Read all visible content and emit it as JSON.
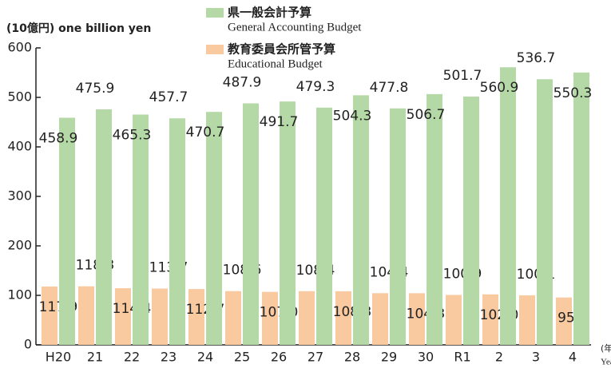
{
  "chart_data": {
    "type": "bar",
    "y_label": "(10億円) one billion yen",
    "x_label": "(年度)",
    "x_label_en": "Year",
    "categories": [
      "H20",
      "21",
      "22",
      "23",
      "24",
      "25",
      "26",
      "27",
      "28",
      "29",
      "30",
      "R1",
      "2",
      "3",
      "4"
    ],
    "series": [
      {
        "name": "教育委員会所管予算",
        "name_en": "Educational Budget",
        "color": "#f9c9a0",
        "values": [
          117.9,
          118.3,
          114.4,
          113.7,
          112.7,
          108.6,
          107.0,
          108.4,
          108.3,
          104.4,
          104.3,
          100.9,
          102.0,
          100.1,
          95.7
        ],
        "value_labels": [
          "117.9",
          "118.3",
          "114.4",
          "113.7",
          "112.7",
          "108.6",
          "107.0",
          "108.4",
          "108.3",
          "104.4",
          "104.3",
          "100.9",
          "102.0",
          "100.1",
          "95.7"
        ]
      },
      {
        "name": "県一般会計予算",
        "name_en": "General Accounting Budget",
        "color": "#b5d9a6",
        "values": [
          458.9,
          475.9,
          465.3,
          457.7,
          470.7,
          487.9,
          491.7,
          479.3,
          504.3,
          477.8,
          506.7,
          501.7,
          560.9,
          536.7,
          550.3
        ]
      }
    ],
    "ylim": [
      0,
      600
    ],
    "yticks": [
      0,
      100,
      200,
      300,
      400,
      500,
      600
    ]
  }
}
